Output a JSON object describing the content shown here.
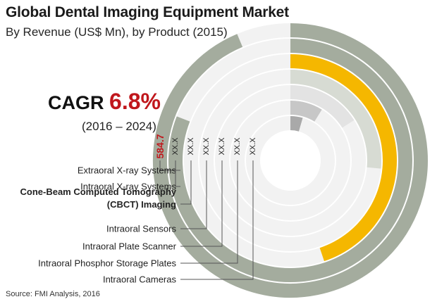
{
  "header": {
    "title": "Global Dental Imaging Equipment Market",
    "subtitle": "By Revenue (US$ Mn), by Product (2015)"
  },
  "cagr": {
    "label": "CAGR",
    "value": "6.8%",
    "period": "(2016 – 2024)"
  },
  "footer": {
    "source": "Source: FMI Analysis, 2016"
  },
  "colors": {
    "grey_ring": "#a4ac9e",
    "yellow_ring": "#f5b700",
    "track": "#f2f2f2",
    "highlight_text": "#c0171c",
    "leader": "#555555"
  },
  "chart_data": {
    "type": "radial-bar",
    "title": "Global Dental Imaging Equipment Market",
    "unit": "US$ Mn",
    "categories": [
      "Extraoral X-ray Systems",
      "Intraoral X-ray Systems",
      "Cone-Beam Computed Tomography (CBCT) Imaging",
      "Intraoral Sensors",
      "Intraoral Plate Scanner",
      "Intraoral Phosphor Storage Plates",
      "Intraoral Cameras"
    ],
    "value_labels": [
      "584.7",
      "XX.X",
      "XX.X",
      "XX.X",
      "XX.X",
      "XX.X",
      "XX.X"
    ],
    "series": [
      {
        "values": [
          584.7,
          505,
          280,
          165,
          100,
          55,
          28
        ],
        "colors": [
          "#a4ac9e",
          "#a4ac9e",
          "#f5b700",
          "#d7dbd3",
          "#e3e3e3",
          "#c7c7c7",
          "#a9a9a9"
        ]
      }
    ],
    "max": 600,
    "highlight_category": "Cone-Beam Computed Tomography (CBCT) Imaging"
  }
}
